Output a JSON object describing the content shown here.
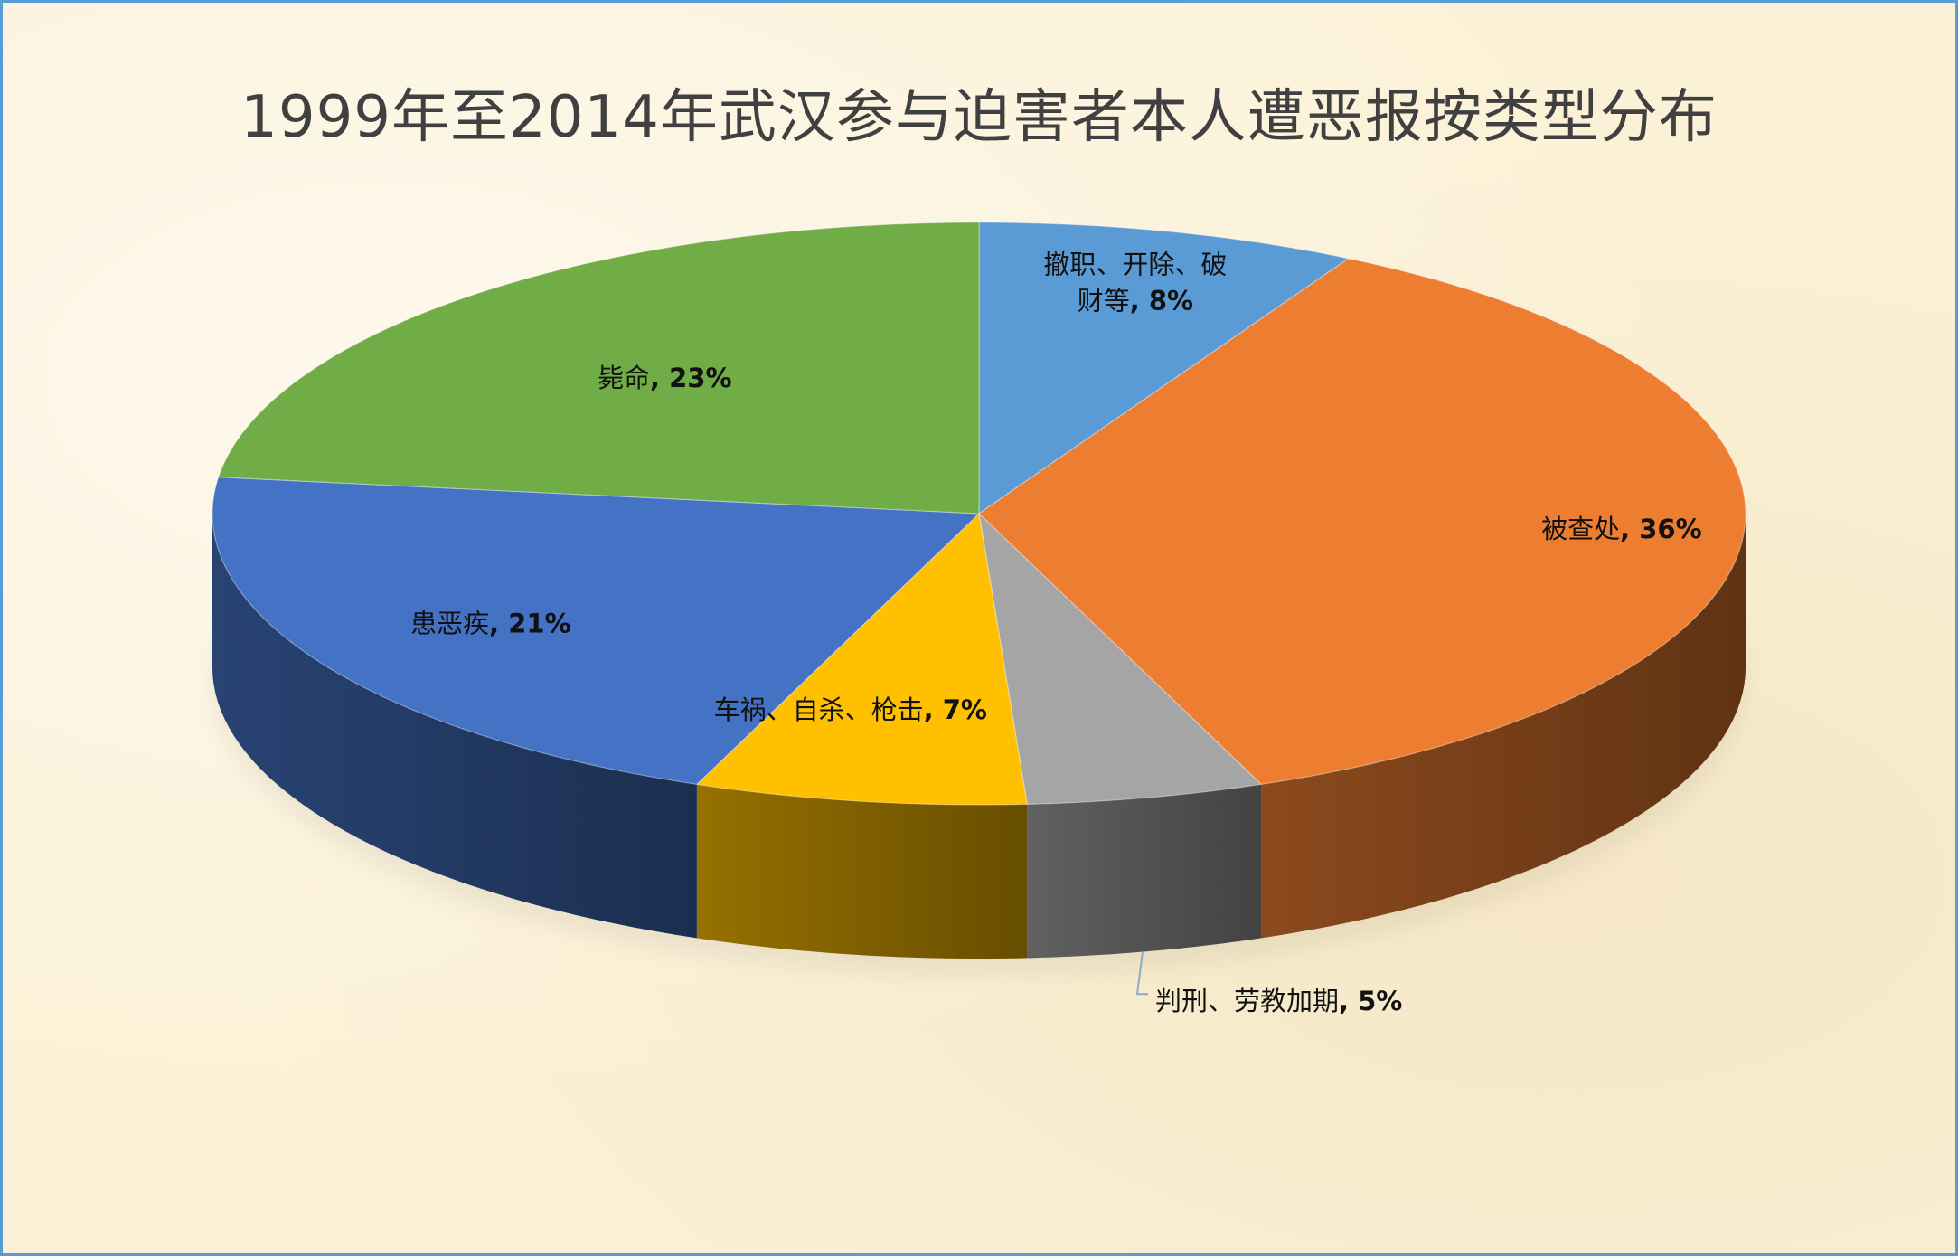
{
  "chart_data": {
    "type": "pie",
    "title": "1999年至2014年武汉参与迫害者本人遭恶报按类型分布",
    "slices": [
      {
        "label": "撤职、开除、破财等",
        "label_lines": [
          "撤职、开除、破",
          "财等"
        ],
        "value": 8,
        "pct_text": "8%",
        "color": "#5b9bd5"
      },
      {
        "label": "被查处",
        "label_lines": [
          "被查处"
        ],
        "value": 36,
        "pct_text": "36%",
        "color": "#ed7d31"
      },
      {
        "label": "判刑、劳教加期",
        "label_lines": [
          "判刑、劳教加期"
        ],
        "value": 5,
        "pct_text": "5%",
        "color": "#a5a5a5"
      },
      {
        "label": "车祸、自杀、枪击",
        "label_lines": [
          "车祸、自杀、枪击"
        ],
        "value": 7,
        "pct_text": "7%",
        "color": "#ffc000"
      },
      {
        "label": "患恶疾",
        "label_lines": [
          "患恶疾"
        ],
        "value": 21,
        "pct_text": "21%",
        "color": "#4472c4"
      },
      {
        "label": "毙命",
        "label_lines": [
          "毙命"
        ],
        "value": 23,
        "pct_text": "23%",
        "color": "#70ad47"
      }
    ],
    "style": "3d-pie",
    "data_labels": "category and percent"
  }
}
